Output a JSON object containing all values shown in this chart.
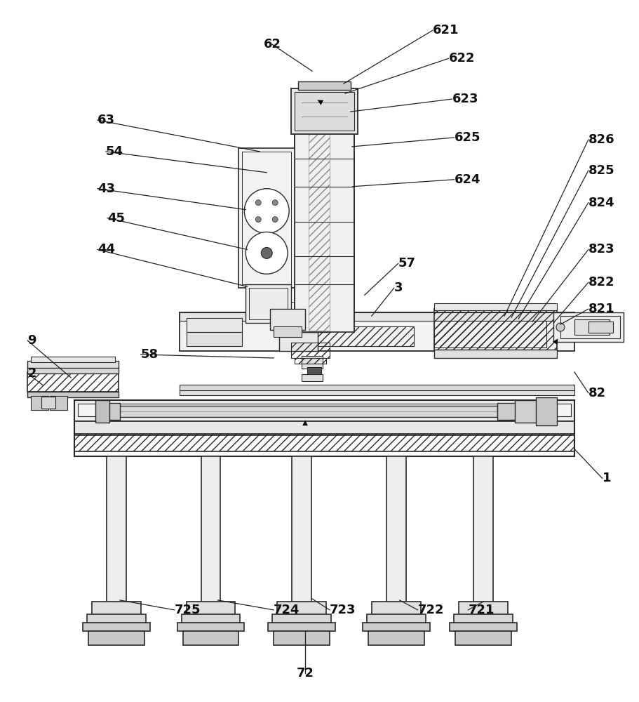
{
  "bg_color": "#ffffff",
  "lc": "#2a2a2a",
  "lw": 1.0,
  "hatch_lw": 0.5,
  "font_size": 13,
  "font_bold": true
}
